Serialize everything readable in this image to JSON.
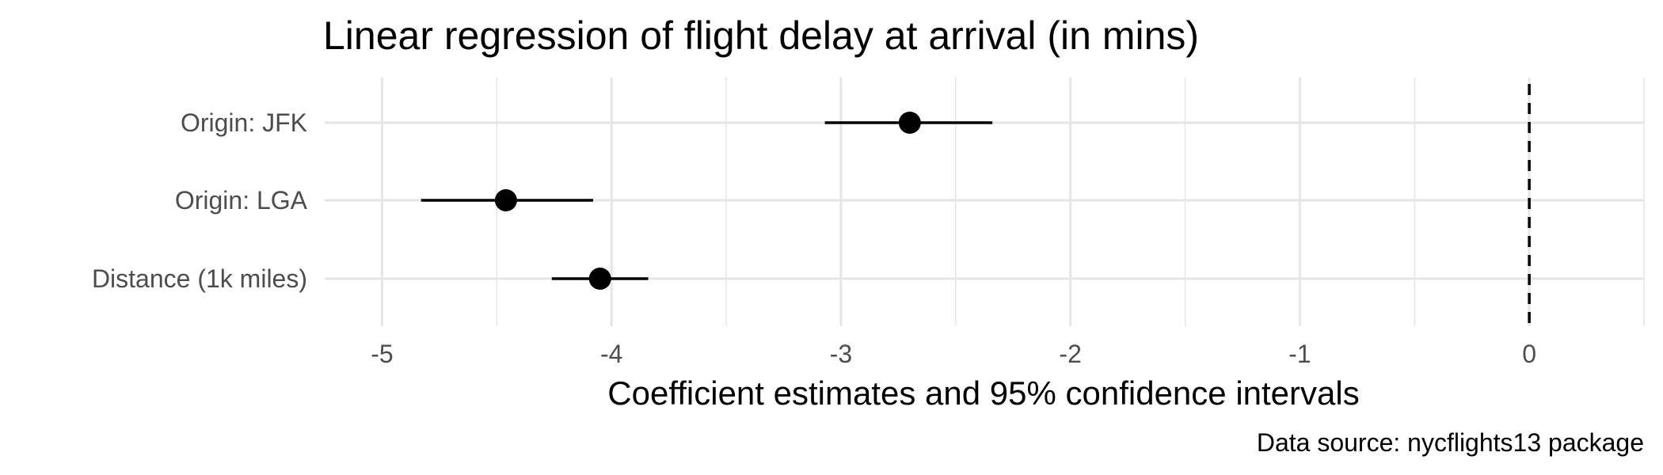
{
  "chart_data": {
    "type": "scatter",
    "title": "Linear regression of flight delay at arrival (in mins)",
    "xlabel": "Coefficient estimates and 95% confidence intervals",
    "ylabel": "",
    "caption": "Data source: nycflights13 package",
    "xlim": [
      -5.25,
      0.5
    ],
    "x_ticks": [
      -5,
      -4,
      -3,
      -2,
      -1,
      0
    ],
    "x_tick_labels": [
      "-5",
      "-4",
      "-3",
      "-2",
      "-1",
      "0"
    ],
    "categories": [
      "Origin: JFK",
      "Origin: LGA",
      "Distance (1k miles)"
    ],
    "series": [
      {
        "estimates": [
          -2.7,
          -4.46,
          -4.05
        ],
        "ci_low": [
          -3.07,
          -4.83,
          -4.26
        ],
        "ci_high": [
          -2.34,
          -4.08,
          -3.84
        ]
      }
    ],
    "reference_line": 0,
    "grid": true,
    "colors": {
      "point": "#000000",
      "grid": "#e6e6e6",
      "reference": "#000000"
    }
  }
}
